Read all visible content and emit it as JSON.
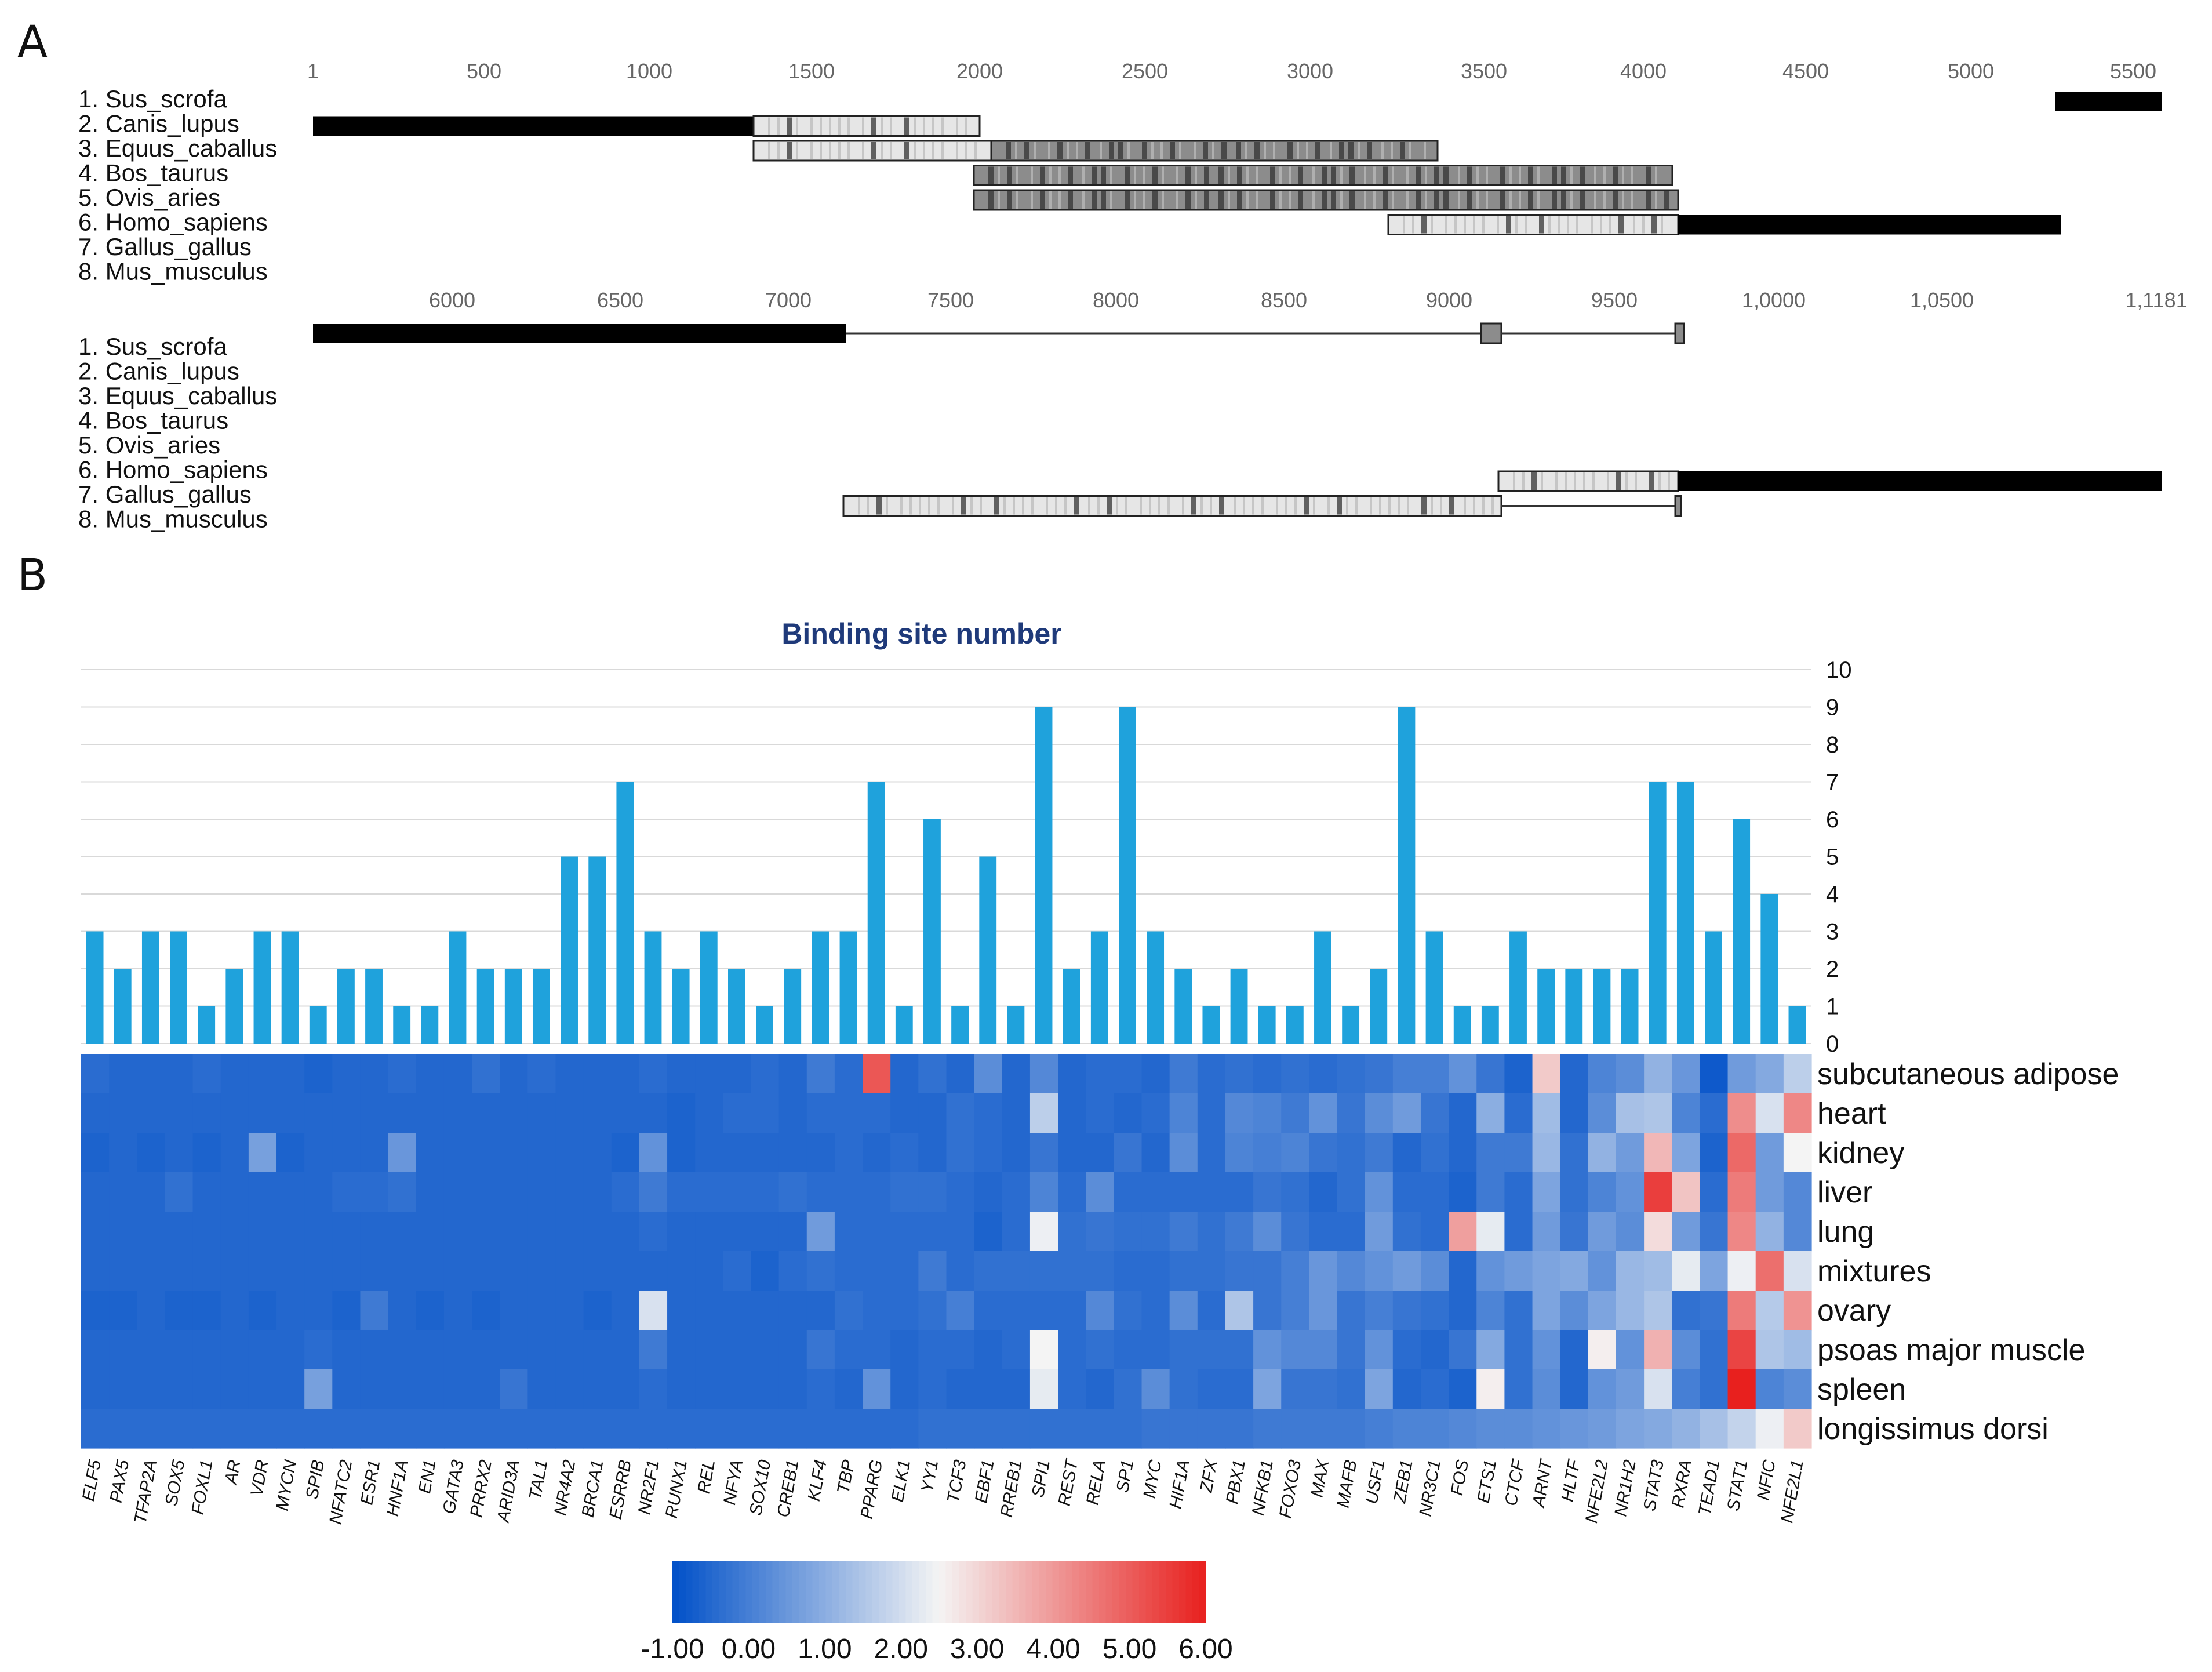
{
  "panel_a": {
    "label": "A",
    "tracks": [
      {
        "ticks": [
          "1",
          "500",
          "1000",
          "1500",
          "2000",
          "2500",
          "3000",
          "3500",
          "4000",
          "4500",
          "5000",
          "5500"
        ],
        "species": [
          "1. Sus_scrofa",
          "2. Canis_lupus",
          "3. Equus_caballus",
          "4. Bos_taurus",
          "5. Ovis_aries",
          "6. Homo_sapiens",
          "7. Gallus_gallus",
          "8. Mus_musculus"
        ]
      },
      {
        "ticks": [
          "6000",
          "6500",
          "7000",
          "7500",
          "8000",
          "8500",
          "9000",
          "9500",
          "1,0000",
          "1,0500",
          "1,1181"
        ],
        "species": [
          "1. Sus_scrofa",
          "2. Canis_lupus",
          "3. Equus_caballus",
          "4. Bos_taurus",
          "5. Ovis_aries",
          "6. Homo_sapiens",
          "7. Gallus_gallus",
          "8. Mus_musculus"
        ]
      }
    ],
    "colors": {
      "conserved": "#000000",
      "aligned_light": "#e6e6e6",
      "aligned_mid": "#8c8c8c"
    }
  },
  "chart_data": [
    {
      "type": "bar",
      "label": "B",
      "title": "Binding site number",
      "ylim": [
        0,
        10
      ],
      "yticks": [
        "0",
        "1",
        "2",
        "3",
        "4",
        "5",
        "6",
        "7",
        "8",
        "9",
        "10"
      ],
      "bar_color": "#1fa2dc",
      "categories": [
        "ELF5",
        "PAX5",
        "TFAP2A",
        "SOX5",
        "FOXL1",
        "AR",
        "VDR",
        "MYCN",
        "SPIB",
        "NFATC2",
        "ESR1",
        "HNF1A",
        "EN1",
        "GATA3",
        "PRRX2",
        "ARID3A",
        "TAL1",
        "NR4A2",
        "BRCA1",
        "ESRRB",
        "NR2F1",
        "RUNX1",
        "REL",
        "NFYA",
        "SOX10",
        "CREB1",
        "KLF4",
        "TBP",
        "PPARG",
        "ELK1",
        "YY1",
        "TCF3",
        "EBF1",
        "RREB1",
        "SPI1",
        "REST",
        "RELA",
        "SP1",
        "MYC",
        "HIF1A",
        "ZFX",
        "PBX1",
        "NFKB1",
        "FOXO3",
        "MAX",
        "MAFB",
        "USF1",
        "ZEB1",
        "NR3C1",
        "FOS",
        "ETS1",
        "CTCF",
        "ARNT",
        "HLTF",
        "NFE2L2",
        "NR1H2",
        "STAT3",
        "RXRA",
        "TEAD1",
        "STAT1",
        "NFIC",
        "NFE2L1"
      ],
      "values": [
        3,
        2,
        3,
        3,
        1,
        2,
        3,
        3,
        1,
        2,
        2,
        1,
        1,
        3,
        2,
        2,
        2,
        5,
        5,
        7,
        3,
        2,
        3,
        2,
        1,
        2,
        3,
        3,
        7,
        1,
        6,
        1,
        5,
        1,
        9,
        2,
        3,
        9,
        3,
        2,
        1,
        2,
        1,
        1,
        3,
        1,
        2,
        9,
        3,
        1,
        1,
        3,
        2,
        2,
        2,
        2,
        7,
        7,
        3,
        6,
        4,
        1
      ]
    },
    {
      "type": "heatmap",
      "rows": [
        "subcutaneous adipose",
        "heart",
        "kidney",
        "liver",
        "lung",
        "mixtures",
        "ovary",
        "psoas major muscle",
        "spleen",
        "longissimus dorsi"
      ],
      "columns_ref": "same as bar categories",
      "colorbar": {
        "min": -1,
        "max": 6,
        "ticks": [
          "-1.00",
          "0.00",
          "1.00",
          "2.00",
          "3.00",
          "4.00",
          "5.00",
          "6.00"
        ],
        "low_color": "#0050c8",
        "mid_color": "#f4f4f4",
        "high_color": "#e8201e"
      },
      "values": [
        [
          -0.4,
          -0.5,
          -0.5,
          -0.5,
          -0.4,
          -0.5,
          -0.5,
          -0.5,
          -0.6,
          -0.5,
          -0.5,
          -0.4,
          -0.5,
          -0.5,
          -0.3,
          -0.5,
          -0.4,
          -0.5,
          -0.5,
          -0.5,
          -0.4,
          -0.5,
          -0.5,
          -0.5,
          -0.4,
          -0.5,
          -0.1,
          -0.4,
          5.1,
          -0.5,
          -0.3,
          -0.5,
          0.3,
          -0.5,
          0.2,
          -0.5,
          -0.4,
          -0.4,
          -0.5,
          -0.1,
          -0.4,
          -0.3,
          -0.4,
          -0.3,
          -0.4,
          -0.3,
          -0.2,
          0.0,
          0.0,
          0.4,
          -0.2,
          -0.6,
          3.2,
          -0.5,
          0.1,
          0.3,
          1.1,
          0.5,
          -0.8,
          0.6,
          0.9,
          1.7
        ],
        [
          -0.5,
          -0.5,
          -0.5,
          -0.5,
          -0.5,
          -0.5,
          -0.5,
          -0.5,
          -0.5,
          -0.5,
          -0.5,
          -0.5,
          -0.5,
          -0.5,
          -0.5,
          -0.5,
          -0.5,
          -0.5,
          -0.5,
          -0.5,
          -0.5,
          -0.6,
          -0.5,
          -0.4,
          -0.4,
          -0.5,
          -0.4,
          -0.4,
          -0.4,
          -0.5,
          -0.5,
          -0.3,
          -0.4,
          -0.5,
          1.7,
          -0.5,
          -0.4,
          -0.5,
          -0.4,
          0.1,
          -0.4,
          0.2,
          0.1,
          -0.1,
          0.4,
          -0.2,
          0.3,
          0.6,
          -0.2,
          -0.5,
          1.0,
          -0.4,
          1.3,
          -0.5,
          0.3,
          1.4,
          1.5,
          0.1,
          -0.4,
          4.2,
          2.1,
          4.3
        ],
        [
          -0.6,
          -0.5,
          -0.6,
          -0.5,
          -0.6,
          -0.5,
          0.7,
          -0.6,
          -0.5,
          -0.5,
          -0.5,
          0.5,
          -0.5,
          -0.5,
          -0.5,
          -0.5,
          -0.5,
          -0.5,
          -0.5,
          -0.6,
          0.4,
          -0.6,
          -0.5,
          -0.5,
          -0.5,
          -0.5,
          -0.5,
          -0.4,
          -0.5,
          -0.4,
          -0.5,
          -0.3,
          -0.4,
          -0.5,
          -0.2,
          -0.5,
          -0.5,
          -0.2,
          -0.5,
          0.3,
          -0.4,
          0.1,
          0.0,
          0.1,
          -0.2,
          -0.3,
          -0.1,
          -0.5,
          -0.3,
          -0.5,
          -0.1,
          -0.1,
          1.2,
          -0.3,
          1.1,
          0.6,
          3.5,
          0.8,
          -0.6,
          4.8,
          0.6,
          2.5
        ],
        [
          -0.5,
          -0.5,
          -0.5,
          -0.3,
          -0.5,
          -0.5,
          -0.5,
          -0.5,
          -0.5,
          -0.4,
          -0.4,
          -0.3,
          -0.5,
          -0.5,
          -0.5,
          -0.5,
          -0.5,
          -0.5,
          -0.5,
          -0.4,
          -0.1,
          -0.4,
          -0.4,
          -0.4,
          -0.4,
          -0.3,
          -0.4,
          -0.4,
          -0.4,
          -0.3,
          -0.3,
          -0.4,
          -0.5,
          -0.4,
          0.1,
          -0.4,
          0.3,
          -0.4,
          -0.4,
          -0.4,
          -0.4,
          -0.4,
          -0.2,
          -0.3,
          -0.5,
          -0.3,
          0.4,
          -0.4,
          -0.4,
          -0.6,
          -0.1,
          -0.4,
          0.8,
          -0.3,
          0.1,
          0.4,
          5.5,
          3.3,
          -0.4,
          4.5,
          0.6,
          0.2
        ],
        [
          -0.5,
          -0.5,
          -0.5,
          -0.5,
          -0.5,
          -0.5,
          -0.5,
          -0.5,
          -0.5,
          -0.5,
          -0.5,
          -0.5,
          -0.5,
          -0.5,
          -0.5,
          -0.5,
          -0.5,
          -0.5,
          -0.5,
          -0.5,
          -0.4,
          -0.5,
          -0.5,
          -0.5,
          -0.5,
          -0.5,
          0.6,
          -0.4,
          -0.4,
          -0.4,
          -0.4,
          -0.4,
          -0.6,
          -0.4,
          2.4,
          -0.3,
          -0.2,
          -0.3,
          -0.3,
          -0.1,
          -0.3,
          -0.1,
          0.3,
          -0.2,
          -0.4,
          -0.4,
          0.6,
          -0.3,
          -0.4,
          3.9,
          2.3,
          -0.4,
          0.6,
          -0.2,
          0.6,
          0.3,
          2.9,
          0.6,
          -0.2,
          4.3,
          1.1,
          0.2
        ],
        [
          -0.5,
          -0.5,
          -0.5,
          -0.5,
          -0.5,
          -0.5,
          -0.5,
          -0.5,
          -0.5,
          -0.5,
          -0.5,
          -0.5,
          -0.5,
          -0.5,
          -0.5,
          -0.5,
          -0.5,
          -0.5,
          -0.5,
          -0.5,
          -0.5,
          -0.5,
          -0.5,
          -0.4,
          -0.6,
          -0.4,
          -0.3,
          -0.4,
          -0.4,
          -0.4,
          -0.1,
          -0.4,
          -0.3,
          -0.3,
          -0.3,
          -0.3,
          -0.3,
          -0.4,
          -0.4,
          -0.3,
          -0.3,
          -0.2,
          -0.2,
          0.0,
          0.5,
          0.2,
          0.4,
          0.6,
          0.3,
          -0.5,
          0.4,
          0.6,
          0.8,
          0.9,
          0.4,
          1.2,
          1.3,
          2.3,
          0.8,
          2.4,
          4.7,
          2.1
        ],
        [
          -0.6,
          -0.6,
          -0.5,
          -0.6,
          -0.6,
          -0.5,
          -0.6,
          -0.5,
          -0.5,
          -0.6,
          -0.1,
          -0.5,
          -0.6,
          -0.5,
          -0.6,
          -0.5,
          -0.5,
          -0.5,
          -0.6,
          -0.5,
          2.1,
          -0.5,
          -0.5,
          -0.5,
          -0.5,
          -0.5,
          -0.5,
          -0.3,
          -0.4,
          -0.4,
          -0.3,
          0.0,
          -0.4,
          -0.4,
          -0.4,
          -0.4,
          0.2,
          -0.3,
          -0.4,
          0.3,
          -0.4,
          1.5,
          -0.2,
          0.0,
          0.5,
          -0.2,
          0.0,
          -0.2,
          -0.3,
          -0.5,
          0.1,
          -0.3,
          0.8,
          0.3,
          0.8,
          1.2,
          1.5,
          -0.3,
          -0.2,
          4.5,
          1.6,
          4.1
        ],
        [
          -0.5,
          -0.5,
          -0.5,
          -0.5,
          -0.5,
          -0.5,
          -0.5,
          -0.5,
          -0.4,
          -0.5,
          -0.5,
          -0.5,
          -0.5,
          -0.5,
          -0.5,
          -0.5,
          -0.5,
          -0.5,
          -0.5,
          -0.5,
          -0.1,
          -0.5,
          -0.5,
          -0.5,
          -0.5,
          -0.5,
          -0.2,
          -0.4,
          -0.4,
          -0.5,
          -0.4,
          -0.4,
          -0.5,
          -0.4,
          2.5,
          -0.4,
          -0.3,
          -0.4,
          -0.4,
          -0.3,
          -0.3,
          -0.3,
          0.4,
          0.2,
          0.2,
          -0.2,
          0.4,
          -0.4,
          -0.5,
          -0.2,
          0.9,
          -0.3,
          0.4,
          -0.5,
          2.6,
          0.4,
          3.6,
          0.3,
          -0.3,
          5.4,
          1.5,
          1.3
        ],
        [
          -0.5,
          -0.5,
          -0.5,
          -0.5,
          -0.5,
          -0.5,
          -0.5,
          -0.5,
          0.7,
          -0.5,
          -0.5,
          -0.5,
          -0.5,
          -0.5,
          -0.5,
          -0.2,
          -0.5,
          -0.5,
          -0.5,
          -0.5,
          -0.4,
          -0.5,
          -0.5,
          -0.5,
          -0.5,
          -0.5,
          -0.4,
          -0.5,
          0.4,
          -0.5,
          -0.4,
          -0.5,
          -0.5,
          -0.5,
          2.3,
          -0.4,
          -0.5,
          -0.3,
          0.3,
          -0.3,
          -0.4,
          -0.4,
          0.8,
          -0.2,
          -0.2,
          -0.3,
          0.8,
          -0.5,
          -0.4,
          -0.6,
          2.6,
          -0.3,
          0.3,
          -0.5,
          0.4,
          0.6,
          2.1,
          0.0,
          -0.3,
          6.0,
          0.1,
          0.3
        ],
        [
          -0.4,
          -0.4,
          -0.4,
          -0.4,
          -0.4,
          -0.4,
          -0.4,
          -0.4,
          -0.4,
          -0.4,
          -0.4,
          -0.4,
          -0.4,
          -0.4,
          -0.4,
          -0.4,
          -0.4,
          -0.4,
          -0.4,
          -0.4,
          -0.4,
          -0.4,
          -0.4,
          -0.4,
          -0.4,
          -0.4,
          -0.4,
          -0.4,
          -0.4,
          -0.4,
          -0.3,
          -0.3,
          -0.3,
          -0.3,
          -0.3,
          -0.3,
          -0.3,
          -0.3,
          -0.2,
          -0.2,
          -0.2,
          -0.2,
          -0.1,
          -0.1,
          -0.1,
          -0.1,
          0.0,
          0.1,
          0.1,
          0.2,
          0.3,
          0.3,
          0.4,
          0.5,
          0.6,
          0.8,
          0.9,
          1.1,
          1.4,
          1.8,
          2.4,
          3.2
        ]
      ]
    }
  ]
}
